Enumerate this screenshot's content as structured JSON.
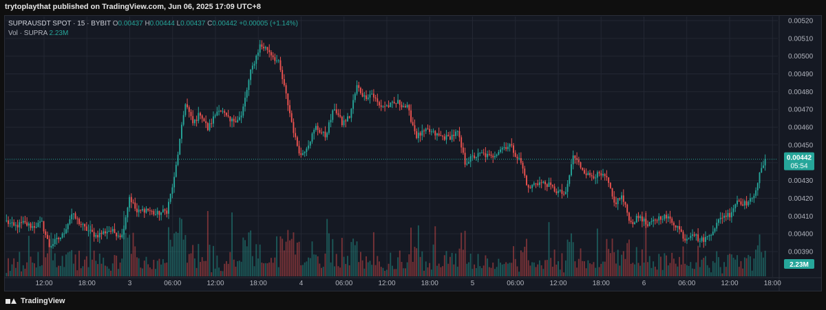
{
  "header": {
    "published": "trytoplaythat published on TradingView.com, Jun 06, 2025 17:09 UTC+8"
  },
  "legend": {
    "symbol": "SUPRAUSDT SPOT · 15 · BYBIT",
    "open_label": "O",
    "open": "0.00437",
    "high_label": "H",
    "high": "0.00444",
    "low_label": "L",
    "low": "0.00437",
    "close_label": "C",
    "close": "0.00442",
    "change": "+0.00005 (+1.14%)",
    "vol_label": "Vol · SUPRA",
    "vol": "2.23M"
  },
  "colors": {
    "up": "#26a69a",
    "down": "#ef5350",
    "bg": "#151923",
    "grid": "#232733",
    "axis_text": "#b2b5be"
  },
  "axis": {
    "price_ticks": [
      "0.00520",
      "0.00510",
      "0.00500",
      "0.00490",
      "0.00480",
      "0.00470",
      "0.00460",
      "0.00450",
      "0.00440",
      "0.00430",
      "0.00420",
      "0.00410",
      "0.00400",
      "0.00390"
    ],
    "time_labels": [
      "12:00",
      "18:00",
      "3",
      "06:00",
      "12:00",
      "18:00",
      "4",
      "06:00",
      "12:00",
      "18:00",
      "5",
      "06:00",
      "12:00",
      "18:00",
      "6",
      "06:00",
      "12:00",
      "18:00"
    ]
  },
  "badges": {
    "price": "0.00442",
    "countdown": "05:54",
    "volume": "2.23M"
  },
  "footer": {
    "brand": "TradingView"
  },
  "chart_data": {
    "type": "candlestick",
    "symbol": "SUPRAUSDT",
    "interval": "15",
    "ylim": [
      0.00385,
      0.00525
    ],
    "last_close": 0.00442,
    "path": [
      [
        0,
        0.00407
      ],
      [
        4,
        0.00404
      ],
      [
        9,
        0.00406
      ],
      [
        14,
        0.00404
      ],
      [
        19,
        0.00406
      ],
      [
        23,
        0.00393
      ],
      [
        30,
        0.00399
      ],
      [
        35,
        0.00411
      ],
      [
        42,
        0.00403
      ],
      [
        48,
        0.00399
      ],
      [
        55,
        0.00402
      ],
      [
        62,
        0.00399
      ],
      [
        66,
        0.00421
      ],
      [
        70,
        0.00412
      ],
      [
        75,
        0.00414
      ],
      [
        80,
        0.00411
      ],
      [
        86,
        0.00413
      ],
      [
        90,
        0.00431
      ],
      [
        96,
        0.00474
      ],
      [
        100,
        0.00462
      ],
      [
        104,
        0.00468
      ],
      [
        108,
        0.00459
      ],
      [
        114,
        0.00471
      ],
      [
        120,
        0.00463
      ],
      [
        126,
        0.00466
      ],
      [
        131,
        0.00491
      ],
      [
        136,
        0.00506
      ],
      [
        140,
        0.00504
      ],
      [
        146,
        0.00496
      ],
      [
        150,
        0.00478
      ],
      [
        155,
        0.00453
      ],
      [
        158,
        0.00444
      ],
      [
        162,
        0.00451
      ],
      [
        166,
        0.0046
      ],
      [
        171,
        0.00455
      ],
      [
        176,
        0.00471
      ],
      [
        180,
        0.00462
      ],
      [
        184,
        0.00466
      ],
      [
        188,
        0.00483
      ],
      [
        192,
        0.00477
      ],
      [
        196,
        0.00479
      ],
      [
        200,
        0.00472
      ],
      [
        205,
        0.00472
      ],
      [
        210,
        0.00474
      ],
      [
        215,
        0.00471
      ],
      [
        220,
        0.00455
      ],
      [
        226,
        0.00458
      ],
      [
        232,
        0.00455
      ],
      [
        237,
        0.00454
      ],
      [
        242,
        0.00457
      ],
      [
        246,
        0.0044
      ],
      [
        250,
        0.00443
      ],
      [
        255,
        0.00445
      ],
      [
        260,
        0.00443
      ],
      [
        265,
        0.00448
      ],
      [
        270,
        0.0045
      ],
      [
        276,
        0.0044
      ],
      [
        280,
        0.00425
      ],
      [
        284,
        0.00429
      ],
      [
        290,
        0.00428
      ],
      [
        295,
        0.00424
      ],
      [
        300,
        0.00422
      ],
      [
        304,
        0.00444
      ],
      [
        308,
        0.00438
      ],
      [
        312,
        0.00433
      ],
      [
        318,
        0.00433
      ],
      [
        322,
        0.00431
      ],
      [
        326,
        0.00417
      ],
      [
        330,
        0.00421
      ],
      [
        335,
        0.00406
      ],
      [
        340,
        0.0041
      ],
      [
        344,
        0.00404
      ],
      [
        348,
        0.00408
      ],
      [
        352,
        0.0041
      ],
      [
        356,
        0.00408
      ],
      [
        360,
        0.00404
      ],
      [
        364,
        0.00397
      ],
      [
        368,
        0.00401
      ],
      [
        372,
        0.00396
      ],
      [
        376,
        0.00398
      ],
      [
        380,
        0.00404
      ],
      [
        384,
        0.0041
      ],
      [
        388,
        0.00411
      ],
      [
        392,
        0.00419
      ],
      [
        396,
        0.00417
      ],
      [
        400,
        0.00419
      ],
      [
        404,
        0.00433
      ],
      [
        407,
        0.00442
      ]
    ],
    "volume_max": "2.23M"
  }
}
